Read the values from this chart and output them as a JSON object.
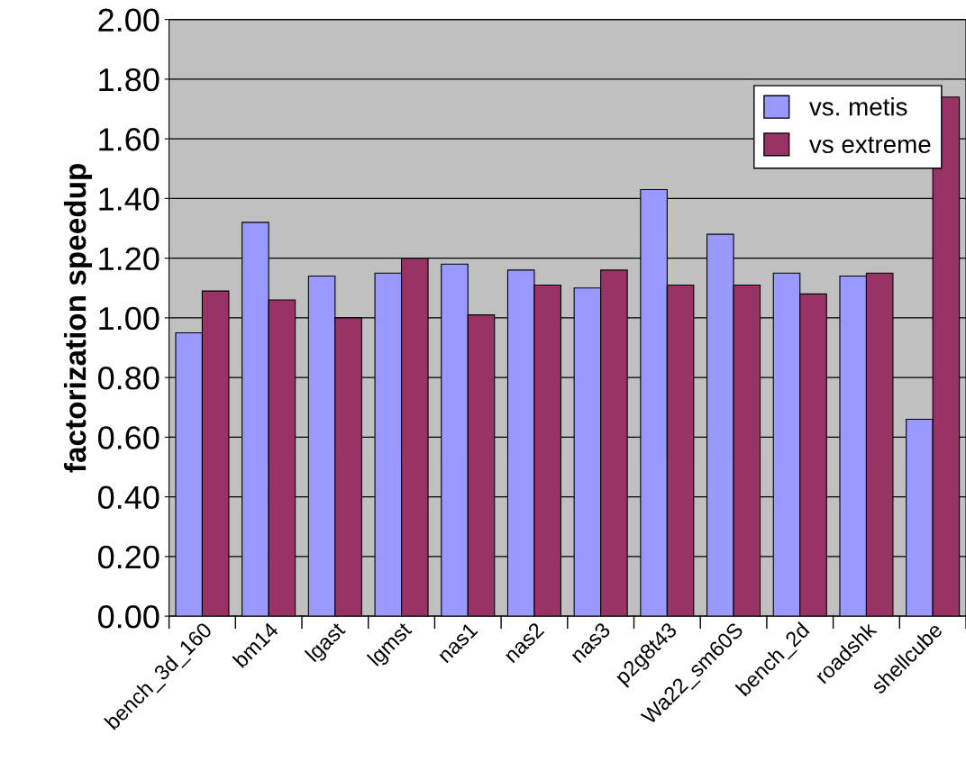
{
  "chart_data": {
    "type": "bar",
    "ylabel": "factorization speedup",
    "categories": [
      "bench_3d_160",
      "bm14",
      "lgast",
      "lgmst",
      "nas1",
      "nas2",
      "nas3",
      "p2g8t43",
      "Wa22_sm60S",
      "bench_2d",
      "roadshk",
      "shellcube"
    ],
    "series": [
      {
        "name": "vs. metis",
        "color": "#9999ff",
        "values": [
          0.95,
          1.32,
          1.14,
          1.15,
          1.18,
          1.16,
          1.1,
          1.43,
          1.28,
          1.15,
          1.14,
          0.66
        ]
      },
      {
        "name": "vs extreme",
        "color": "#993366",
        "values": [
          1.09,
          1.06,
          1.0,
          1.2,
          1.01,
          1.11,
          1.16,
          1.11,
          1.11,
          1.08,
          1.15,
          1.74
        ]
      }
    ],
    "ylim": [
      0,
      2
    ],
    "yticks": [
      {
        "value": 0,
        "label": "0.00"
      },
      {
        "value": 0.2,
        "label": "0.20"
      },
      {
        "value": 0.4,
        "label": "0.40"
      },
      {
        "value": 0.6,
        "label": "0.60"
      },
      {
        "value": 0.8,
        "label": "0.80"
      },
      {
        "value": 1.0,
        "label": "1.00"
      },
      {
        "value": 1.2,
        "label": "1.20"
      },
      {
        "value": 1.4,
        "label": "1.40"
      },
      {
        "value": 1.6,
        "label": "1.60"
      },
      {
        "value": 1.8,
        "label": "1.80"
      },
      {
        "value": 2.0,
        "label": "2.00"
      }
    ],
    "grid": "y",
    "legend": "top right"
  }
}
